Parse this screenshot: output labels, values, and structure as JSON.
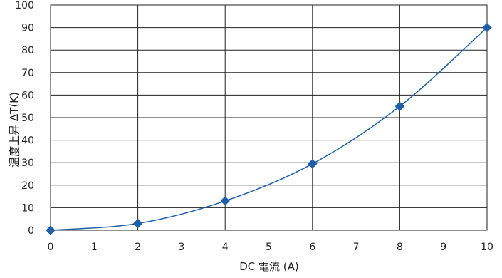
{
  "chart_data": {
    "type": "line",
    "xlabel": "DC 電流 (A)",
    "ylabel": "温度上昇 ΔT(K)",
    "xlim": [
      0,
      10
    ],
    "ylim": [
      0,
      100
    ],
    "x_ticks": [
      "0",
      "1",
      "2",
      "3",
      "4",
      "5",
      "6",
      "7",
      "8",
      "9",
      "10"
    ],
    "y_ticks": [
      "0",
      "10",
      "20",
      "30",
      "40",
      "50",
      "60",
      "70",
      "80",
      "90",
      "100"
    ],
    "grid": true,
    "series": [
      {
        "color": "#1f5fa8",
        "marker": "diamond",
        "x": [
          0,
          2,
          4,
          6,
          8,
          10
        ],
        "y": [
          0,
          3,
          13,
          29.5,
          55,
          90
        ]
      }
    ]
  }
}
